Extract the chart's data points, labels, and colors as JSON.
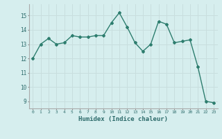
{
  "x": [
    0,
    1,
    2,
    3,
    4,
    5,
    6,
    7,
    8,
    9,
    10,
    11,
    12,
    13,
    14,
    15,
    16,
    17,
    18,
    19,
    20,
    21,
    22,
    23
  ],
  "y": [
    12.0,
    13.0,
    13.4,
    13.0,
    13.1,
    13.6,
    13.5,
    13.5,
    13.6,
    13.6,
    14.5,
    15.2,
    14.2,
    13.1,
    12.5,
    13.0,
    14.6,
    14.4,
    13.1,
    13.2,
    13.3,
    11.4,
    9.0,
    8.9
  ],
  "line_color": "#2d7d6e",
  "marker": "D",
  "marker_size": 2,
  "xlabel": "Humidex (Indice chaleur)",
  "ylim": [
    8.5,
    15.8
  ],
  "xlim": [
    -0.5,
    23.5
  ],
  "yticks": [
    9,
    10,
    11,
    12,
    13,
    14,
    15
  ],
  "xtick_labels": [
    "0",
    "1",
    "2",
    "3",
    "4",
    "5",
    "6",
    "7",
    "8",
    "9",
    "10",
    "11",
    "12",
    "13",
    "14",
    "15",
    "16",
    "17",
    "18",
    "19",
    "20",
    "21",
    "22",
    "23"
  ],
  "bg_color": "#d6eeee",
  "grid_color": "#c8dede",
  "title": ""
}
